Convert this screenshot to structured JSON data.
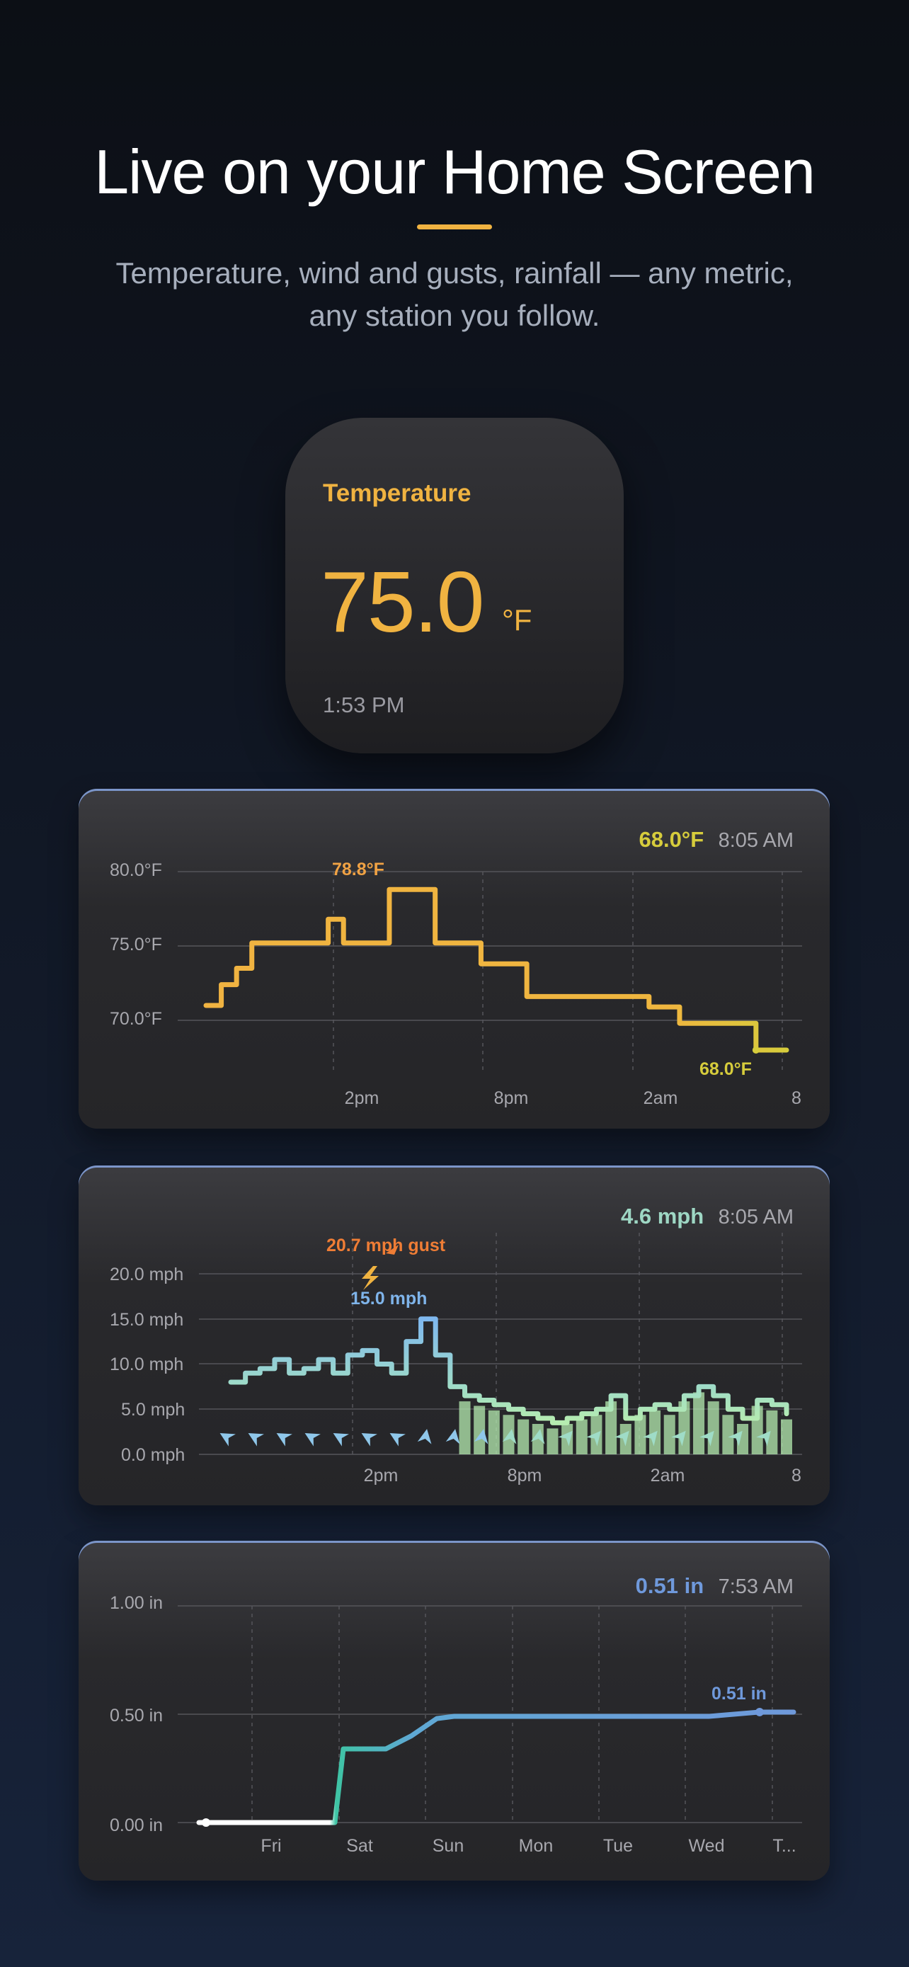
{
  "header": {
    "title": "Live on your Home Screen",
    "subtitle": "Temperature, wind and gusts, rainfall — any metric, any station you follow."
  },
  "small_widget": {
    "metric": "Temperature",
    "value": "75.0",
    "unit": "°F",
    "time": "1:53 PM"
  },
  "colors": {
    "temperature": "#f0b341",
    "temperature_end": "#d6cc3c",
    "wind": "#8fc7ea",
    "wind_low": "#b6ecb0",
    "gust": "#ef7d35",
    "rain": "#6f99db",
    "rain_low": "#42c2a0"
  },
  "temperature_card": {
    "current_value": "68.0°F",
    "current_time": "8:05 AM",
    "max_label": "78.8°F",
    "min_label": "68.0°F",
    "y_ticks": [
      "80.0°F",
      "75.0°F",
      "70.0°F"
    ],
    "x_ticks": [
      "2pm",
      "8pm",
      "2am",
      "8"
    ]
  },
  "wind_card": {
    "current_value": "4.6 mph",
    "current_time": "8:05 AM",
    "gust_label": "20.7 mph gust",
    "peak_label": "15.0 mph",
    "y_ticks": [
      "20.0 mph",
      "15.0 mph",
      "10.0 mph",
      "5.0 mph",
      "0.0 mph"
    ],
    "x_ticks": [
      "2pm",
      "8pm",
      "2am",
      "8"
    ]
  },
  "rain_card": {
    "current_value": "0.51 in",
    "current_time": "7:53 AM",
    "end_label": "0.51 in",
    "y_ticks": [
      "1.00 in",
      "0.50 in",
      "0.00 in"
    ],
    "x_ticks": [
      "Fri",
      "Sat",
      "Sun",
      "Mon",
      "Tue",
      "Wed",
      "T..."
    ]
  },
  "chart_data": [
    {
      "type": "line",
      "title": "",
      "xlabel": "",
      "ylabel": "",
      "ylim": [
        67.5,
        81
      ],
      "x_ticks": [
        "2pm",
        "8pm",
        "2am",
        "8"
      ],
      "series": [
        {
          "x": [
            0,
            0.5,
            1,
            1.5,
            2,
            2.5,
            3,
            3.5,
            4,
            4.5,
            5,
            5.5,
            6,
            6.5,
            7,
            7.5,
            8,
            8.5,
            9,
            9.5,
            10,
            10.5,
            11,
            11.5,
            12,
            12.5,
            13,
            13.5,
            14,
            14.5,
            15,
            15.5,
            16,
            16.5,
            17,
            17.5,
            18,
            18.5,
            19
          ],
          "values": [
            71.0,
            72.4,
            73.5,
            75.2,
            75.2,
            75.2,
            75.2,
            75.2,
            76.8,
            75.2,
            75.2,
            75.2,
            78.8,
            78.8,
            78.8,
            75.2,
            75.2,
            75.2,
            73.8,
            73.8,
            73.8,
            71.6,
            71.6,
            71.6,
            71.6,
            71.6,
            71.6,
            71.6,
            71.6,
            70.9,
            70.9,
            69.8,
            69.8,
            69.8,
            69.8,
            69.8,
            68.0,
            68.0,
            68.0
          ]
        }
      ]
    },
    {
      "type": "line",
      "title": "",
      "xlabel": "",
      "ylabel": "",
      "ylim": [
        0,
        22
      ],
      "x_ticks": [
        "2pm",
        "8pm",
        "2am",
        "8"
      ],
      "series": [
        {
          "x": [
            0,
            0.5,
            1,
            1.5,
            2,
            2.5,
            3,
            3.5,
            4,
            4.5,
            5,
            5.5,
            6,
            6.5,
            7,
            7.5,
            8,
            8.5,
            9,
            9.5,
            10,
            10.5,
            11,
            11.5,
            12,
            12.5,
            13,
            13.5,
            14,
            14.5,
            15,
            15.5,
            16,
            16.5,
            17,
            17.5,
            18,
            18.5,
            19
          ],
          "values": [
            8.0,
            9.0,
            9.5,
            10.5,
            9.0,
            9.5,
            10.5,
            9.0,
            11.0,
            11.5,
            10.0,
            9.0,
            12.5,
            15.0,
            11.0,
            7.5,
            6.5,
            6.0,
            5.5,
            5.0,
            4.5,
            4.0,
            3.5,
            4.0,
            4.5,
            5.0,
            6.5,
            4.0,
            5.0,
            5.5,
            5.0,
            6.5,
            7.5,
            6.5,
            5.0,
            4.0,
            6.0,
            5.5,
            4.5
          ]
        }
      ],
      "annotations": [
        "20.7 mph gust",
        "15.0 mph"
      ]
    },
    {
      "type": "line",
      "title": "",
      "xlabel": "",
      "ylabel": "",
      "ylim": [
        0,
        1.0
      ],
      "x_ticks": [
        "Fri",
        "Sat",
        "Sun",
        "Mon",
        "Tue",
        "Wed",
        "T..."
      ],
      "series": [
        {
          "x": [
            0,
            1,
            1.6,
            1.7,
            2.0,
            2.2,
            2.5,
            2.8,
            3.0,
            4,
            5,
            6,
            6.6,
            7.0
          ],
          "values": [
            0.0,
            0.0,
            0.0,
            0.34,
            0.34,
            0.34,
            0.4,
            0.48,
            0.49,
            0.49,
            0.49,
            0.49,
            0.51,
            0.51
          ]
        }
      ]
    }
  ]
}
